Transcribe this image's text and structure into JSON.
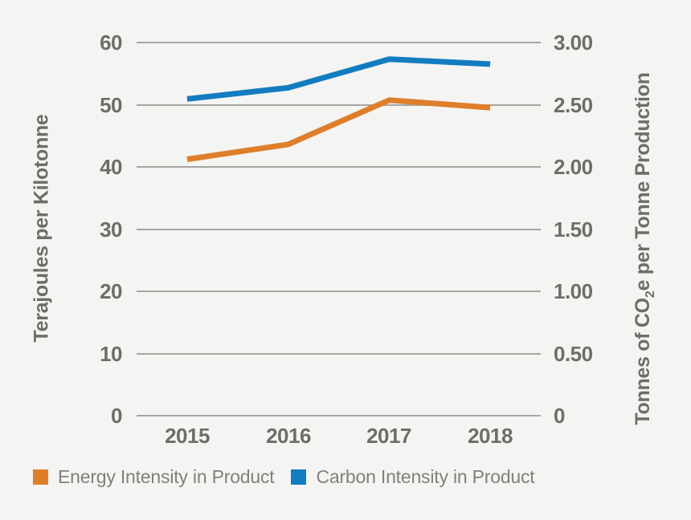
{
  "chart_data": {
    "type": "line",
    "title": "",
    "x_labels": [
      "2015",
      "2016",
      "2017",
      "2018"
    ],
    "left_axis": {
      "title": "Terajoules per Kilotonne",
      "tick_labels": [
        "60",
        "50",
        "40",
        "30",
        "20",
        "10",
        "0"
      ],
      "min": 0,
      "max": 60
    },
    "right_axis": {
      "title_pre": "Tonnes of CO",
      "title_sub": "2",
      "title_post": "e per Tonne Production",
      "tick_labels": [
        "3.00",
        "2.50",
        "2.00",
        "1.50",
        "1.00",
        "0.50",
        "0"
      ],
      "min": 0,
      "max": 3
    },
    "series": [
      {
        "name": "Energy Intensity in Product",
        "axis": "left",
        "color": "#de7e2b",
        "values": [
          41.1,
          43.5,
          50.6,
          49.4
        ]
      },
      {
        "name": "Carbon Intensity in Product",
        "axis": "right",
        "color": "#137cc1",
        "values": [
          2.54,
          2.63,
          2.86,
          2.82
        ]
      }
    ],
    "grid": true,
    "legend_position": "bottom"
  },
  "colors": {
    "background": "#f4f4f2",
    "gridline": "#a7a5a2",
    "axis_text": "#6f6d68",
    "legend_text": "#82807c"
  }
}
